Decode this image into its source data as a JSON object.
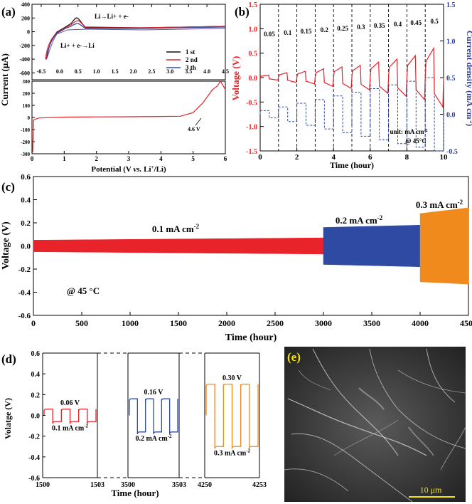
{
  "panels": {
    "a": "(a)",
    "b": "(b)",
    "c": "(c)",
    "d": "(d)",
    "e": "(e)"
  },
  "colors": {
    "red": "#e8232a",
    "blue": "#2f4aa3",
    "orange": "#f08a1c",
    "black": "#111111",
    "yellow": "#f2e600",
    "axis_blue": "#2b3f9e"
  },
  "chart_data": [
    {
      "id": "a",
      "type": "line",
      "xlabel": "Potential (V vs. Li+/Li)",
      "ylabel": "Current (μA)",
      "top": {
        "x_ticks": [
          "-0.5",
          "0.0",
          "0.5",
          "1.0",
          "1.5",
          "2.0",
          "2.5",
          "3.0",
          "3.5",
          "4.0",
          "4.5"
        ],
        "xlim": [
          -0.75,
          4.5
        ],
        "ylim": [
          -700,
          400
        ],
        "y_ticks": [
          "400",
          "200",
          "0",
          "-200",
          "-400",
          "-600"
        ],
        "annotations": [
          "Li→Li+ + e-",
          "Li+ + e-→Li"
        ],
        "series": [
          {
            "name": "1 st",
            "color": "#111111"
          },
          {
            "name": "2 nd",
            "color": "#e8232a"
          },
          {
            "name": "3 th",
            "color": "#2f4aa3"
          }
        ]
      },
      "bottom": {
        "x_ticks": [
          "0",
          "1",
          "2",
          "3",
          "4",
          "5",
          "6"
        ],
        "xlim": [
          0,
          6
        ],
        "ylim": [
          -300,
          300
        ],
        "y_ticks": [
          "300",
          "200",
          "100",
          "0",
          "-100",
          "-200",
          "-300"
        ],
        "annotation": "4.6 V",
        "x": [
          0.02,
          0.05,
          0.2,
          1,
          2,
          3,
          4,
          4.6,
          5,
          5.3,
          5.6,
          5.75,
          5.85,
          6
        ],
        "y": [
          -290,
          -20,
          -5,
          3,
          5,
          6,
          8,
          10,
          40,
          120,
          230,
          260,
          300,
          230
        ]
      }
    },
    {
      "id": "b",
      "type": "line",
      "xlabel": "Time (hour)",
      "ylabel_left": "Voltage (V)",
      "ylabel_right": "Current density (mA cm-2)",
      "xlim": [
        0,
        10
      ],
      "x_ticks": [
        "0",
        "2",
        "4",
        "6",
        "8",
        "10"
      ],
      "ylim_left": [
        -1.5,
        1.5
      ],
      "y_ticks_left": [
        "1.5",
        "1.0",
        "0.5",
        "0.0",
        "-0.5",
        "-1.0",
        "-1.5"
      ],
      "ylim_right": [
        -0.5,
        1.5
      ],
      "y_ticks_right": [
        "1.5",
        "1.0",
        "0.5",
        "0.0",
        "-0.5"
      ],
      "current_steps": [
        "0.05",
        "0.1",
        "0.15",
        "0.2",
        "0.25",
        "0.3",
        "0.35",
        "0.4",
        "0.45",
        "0.5"
      ],
      "peak_voltage": [
        0.05,
        0.1,
        0.13,
        0.18,
        0.22,
        0.25,
        0.32,
        0.38,
        0.45,
        0.6
      ],
      "unit_label": "unit: mA cm-2",
      "temp_label": "@ 45°C"
    },
    {
      "id": "c",
      "type": "area",
      "xlabel": "Time (hour)",
      "ylabel": "Voltage (V)",
      "xlim": [
        0,
        4500
      ],
      "x_ticks": [
        "0",
        "500",
        "1000",
        "1500",
        "2000",
        "2500",
        "3000",
        "3500",
        "4000",
        "4500"
      ],
      "ylim": [
        -0.6,
        0.6
      ],
      "y_ticks": [
        "0.6",
        "0.4",
        "0.2",
        "0.0",
        "-0.2",
        "-0.4",
        "-0.6"
      ],
      "series": [
        {
          "name": "0.1 mA cm-2",
          "x": [
            0,
            3000
          ],
          "upper": [
            0.05,
            0.07
          ],
          "lower": [
            -0.05,
            -0.07
          ],
          "color": "#e8232a"
        },
        {
          "name": "0.2 mA cm-2",
          "x": [
            3000,
            4000
          ],
          "upper": [
            0.16,
            0.18
          ],
          "lower": [
            -0.16,
            -0.18
          ],
          "color": "#2f4aa3"
        },
        {
          "name": "0.3 mA cm-2",
          "x": [
            4000,
            4500
          ],
          "upper": [
            0.28,
            0.33
          ],
          "lower": [
            -0.31,
            -0.33
          ],
          "color": "#f08a1c"
        }
      ],
      "temp_label": "@ 45 °C"
    },
    {
      "id": "d",
      "type": "line",
      "xlabel": "Time (hour)",
      "ylabel": "Volatge (V)",
      "ylim": [
        -0.6,
        0.6
      ],
      "y_ticks": [
        "0.6",
        "0.4",
        "0.2",
        "0.0",
        "-0.2",
        "-0.4",
        "-0.6"
      ],
      "x_ticks": [
        "1500",
        "1503",
        "3500",
        "3503",
        "4250",
        "4253"
      ],
      "segments": [
        {
          "amp": 0.06,
          "voltage_label": "0.06 V",
          "current_label": "0.1 mA cm-2",
          "color": "#e8232a"
        },
        {
          "amp": 0.16,
          "voltage_label": "0.16 V",
          "current_label": "0.2 mA cm-2",
          "color": "#2f4aa3"
        },
        {
          "amp": 0.3,
          "voltage_label": "0.30 V",
          "current_label": "0.3 mA cm-2",
          "color": "#f08a1c"
        }
      ]
    }
  ],
  "sem": {
    "scale_label": "10 μm"
  }
}
